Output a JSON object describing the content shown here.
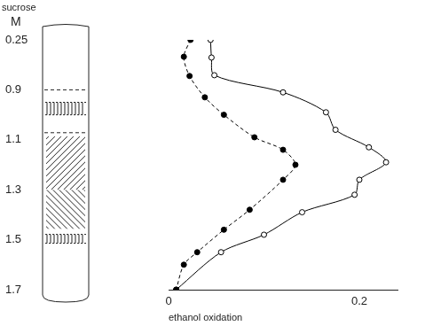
{
  "chart_data": {
    "type": "line",
    "x_label": "ethanol oxidation",
    "y_label": [
      "sucrose",
      "M"
    ],
    "xlim": [
      0,
      0.24
    ],
    "xticks": [
      0,
      0.2
    ],
    "ylim": [
      0.25,
      1.7
    ],
    "yticks": [
      0.25,
      0.9,
      1.1,
      1.3,
      1.5,
      1.7
    ],
    "grid": false,
    "series": [
      {
        "color": "#000000",
        "marker": "filled_circle",
        "line_style": "dashed",
        "x": [
          0.023,
          0.016,
          0.022,
          0.038,
          0.058,
          0.09,
          0.12,
          0.133,
          0.12,
          0.085,
          0.058,
          0.03,
          0.016,
          0.008
        ],
        "y": [
          0.25,
          0.47,
          0.72,
          0.93,
          1.0,
          1.09,
          1.14,
          1.2,
          1.26,
          1.38,
          1.46,
          1.55,
          1.6,
          1.7
        ]
      },
      {
        "color": "#000000",
        "marker": "open_circle",
        "line_style": "solid",
        "x": [
          0.044,
          0.045,
          0.048,
          0.12,
          0.165,
          0.175,
          0.21,
          0.228,
          0.2,
          0.195,
          0.14,
          0.1,
          0.055,
          0.008
        ],
        "y": [
          0.25,
          0.48,
          0.71,
          0.91,
          0.99,
          1.06,
          1.13,
          1.19,
          1.26,
          1.32,
          1.39,
          1.48,
          1.55,
          1.7
        ]
      }
    ]
  }
}
